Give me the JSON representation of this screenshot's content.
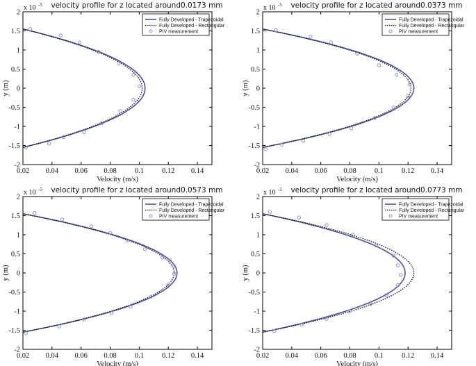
{
  "figure": {
    "colors": {
      "trapezoidal": "#4b4fa0",
      "rectangular": "#111111",
      "piv": "#8f8fcf",
      "axis": "#000000",
      "background": "#ffffff"
    }
  },
  "chart_data": [
    {
      "type": "line",
      "title": "velocity profile for z located around0.0173 mm",
      "xlabel": "Velocity (m/s)",
      "ylabel": "y (m)",
      "y_scale_text": "x 10",
      "y_scale_exponent": "-5",
      "xlim": [
        0.02,
        0.15
      ],
      "ylim": [
        -2,
        2
      ],
      "xticks": [
        "0.02",
        "0.04",
        "0.06",
        "0.08",
        "0.1",
        "0.12",
        "0.14"
      ],
      "yticks": [
        "2",
        "1.5",
        "1",
        "0.5",
        "0",
        "-0.5",
        "-1",
        "-1.5",
        "-2"
      ],
      "legend": [
        "Fully Developed - Trapezoidal",
        "Fully Developed - Rectangular",
        "PIV measurement"
      ],
      "legend_position": "top-right",
      "series": [
        {
          "name": "Fully Developed - Trapezoidal",
          "style": "solid",
          "vmax": 0.104,
          "vedge": 0.02,
          "half_width": 1.55
        },
        {
          "name": "Fully Developed - Rectangular",
          "style": "dotted",
          "vmax": 0.102,
          "vedge": 0.02,
          "half_width": 1.55
        }
      ],
      "piv": {
        "name": "PIV measurement",
        "points": [
          [
            0.025,
            1.55
          ],
          [
            0.046,
            1.38
          ],
          [
            0.059,
            1.2
          ],
          [
            0.072,
            0.95
          ],
          [
            0.086,
            0.65
          ],
          [
            0.096,
            0.35
          ],
          [
            0.1,
            0.05
          ],
          [
            0.096,
            -0.3
          ],
          [
            0.087,
            -0.6
          ],
          [
            0.074,
            -0.92
          ],
          [
            0.062,
            -1.15
          ],
          [
            0.048,
            -1.28
          ],
          [
            0.038,
            -1.45
          ],
          [
            0.022,
            -1.55
          ]
        ]
      }
    },
    {
      "type": "line",
      "title": "velocity profile for z located around0.0373 mm",
      "xlabel": "Velocity (m/s)",
      "ylabel": "y (m)",
      "y_scale_text": "x 10",
      "y_scale_exponent": "-5",
      "xlim": [
        0.02,
        0.15
      ],
      "ylim": [
        -2,
        2
      ],
      "xticks": [
        "0.02",
        "0.04",
        "0.06",
        "0.08",
        "0.1",
        "0.12",
        "0.14"
      ],
      "yticks": [
        "2",
        "1.5",
        "1",
        "0.5",
        "0",
        "-0.5",
        "-1",
        "-1.5",
        "-2"
      ],
      "legend": [
        "Fully Developed - Trapezoidal",
        "Fully Developed - Rectangular",
        "PIV measurement"
      ],
      "legend_position": "top-right",
      "series": [
        {
          "name": "Fully Developed - Trapezoidal",
          "style": "solid",
          "vmax": 0.124,
          "vedge": 0.02,
          "half_width": 1.55
        },
        {
          "name": "Fully Developed - Rectangular",
          "style": "dotted",
          "vmax": 0.122,
          "vedge": 0.02,
          "half_width": 1.55
        }
      ],
      "piv": {
        "name": "PIV measurement",
        "points": [
          [
            0.029,
            1.52
          ],
          [
            0.053,
            1.35
          ],
          [
            0.067,
            1.2
          ],
          [
            0.085,
            0.9
          ],
          [
            0.1,
            0.6
          ],
          [
            0.112,
            0.35
          ],
          [
            0.121,
            0.1
          ],
          [
            0.12,
            -0.2
          ],
          [
            0.11,
            -0.5
          ],
          [
            0.097,
            -0.78
          ],
          [
            0.081,
            -1.05
          ],
          [
            0.066,
            -1.2
          ],
          [
            0.048,
            -1.38
          ],
          [
            0.033,
            -1.48
          ],
          [
            0.022,
            -1.6
          ]
        ]
      }
    },
    {
      "type": "line",
      "title": "velocity profile for z located around0.0573 mm",
      "xlabel": "Velocity (m/s)",
      "ylabel": "y (m)",
      "y_scale_text": "x 10",
      "y_scale_exponent": "-5",
      "xlim": [
        0.02,
        0.15
      ],
      "ylim": [
        -2,
        2
      ],
      "xticks": [
        "0.02",
        "0.04",
        "0.06",
        "0.08",
        "0.1",
        "0.12",
        "0.14"
      ],
      "yticks": [
        "2",
        "1.5",
        "1",
        "0.5",
        "0",
        "-0.5",
        "-1",
        "-1.5",
        "-2"
      ],
      "legend": [
        "Fully Developed - Trapezoidal",
        "Fully Developed - Rectangular",
        "PIV measurement"
      ],
      "legend_position": "top-right",
      "series": [
        {
          "name": "Fully Developed - Trapezoidal",
          "style": "solid",
          "vmax": 0.126,
          "vedge": 0.02,
          "half_width": 1.55
        },
        {
          "name": "Fully Developed - Rectangular",
          "style": "dotted",
          "vmax": 0.124,
          "vedge": 0.02,
          "half_width": 1.55
        }
      ],
      "piv": {
        "name": "PIV measurement",
        "points": [
          [
            0.028,
            1.57
          ],
          [
            0.047,
            1.4
          ],
          [
            0.067,
            1.22
          ],
          [
            0.08,
            1.05
          ],
          [
            0.092,
            0.85
          ],
          [
            0.104,
            0.62
          ],
          [
            0.116,
            0.4
          ],
          [
            0.121,
            0.33
          ],
          [
            0.124,
            0.18
          ],
          [
            0.124,
            -0.02
          ],
          [
            0.12,
            -0.3
          ],
          [
            0.108,
            -0.62
          ],
          [
            0.094,
            -0.88
          ],
          [
            0.081,
            -1.05
          ],
          [
            0.062,
            -1.22
          ],
          [
            0.045,
            -1.4
          ],
          [
            0.022,
            -1.58
          ]
        ]
      }
    },
    {
      "type": "line",
      "title": "velocity profile for z located around0.0773 mm",
      "xlabel": "Velocity (m/s)",
      "ylabel": "y (m)",
      "y_scale_text": "x 10",
      "y_scale_exponent": "-5",
      "xlim": [
        0.02,
        0.15
      ],
      "ylim": [
        -2,
        2
      ],
      "xticks": [
        "0.02",
        "0.04",
        "0.06",
        "0.08",
        "0.1",
        "0.12",
        "0.14"
      ],
      "yticks": [
        "2",
        "1.5",
        "1",
        "0.5",
        "0",
        "-0.5",
        "-1",
        "-1.5",
        "-2"
      ],
      "legend": [
        "Fully Developed - Trapezoidal",
        "Fully Developed - Rectangular",
        "PIV measurement"
      ],
      "legend_position": "top-right",
      "series": [
        {
          "name": "Fully Developed - Trapezoidal",
          "style": "solid",
          "vmax": 0.118,
          "vedge": 0.02,
          "half_width": 1.55
        },
        {
          "name": "Fully Developed - Rectangular",
          "style": "dotted",
          "vmax": 0.124,
          "vedge": 0.02,
          "half_width": 1.55
        }
      ],
      "piv": {
        "name": "PIV measurement",
        "points": [
          [
            0.025,
            1.6
          ],
          [
            0.045,
            1.45
          ],
          [
            0.064,
            1.25
          ],
          [
            0.082,
            1.0
          ],
          [
            0.098,
            0.72
          ],
          [
            0.11,
            0.45
          ],
          [
            0.113,
            0.2
          ],
          [
            0.115,
            -0.05
          ],
          [
            0.113,
            -0.32
          ],
          [
            0.105,
            -0.58
          ],
          [
            0.094,
            -0.82
          ],
          [
            0.08,
            -1.0
          ],
          [
            0.064,
            -1.2
          ],
          [
            0.047,
            -1.35
          ],
          [
            0.028,
            -1.52
          ]
        ]
      }
    }
  ]
}
